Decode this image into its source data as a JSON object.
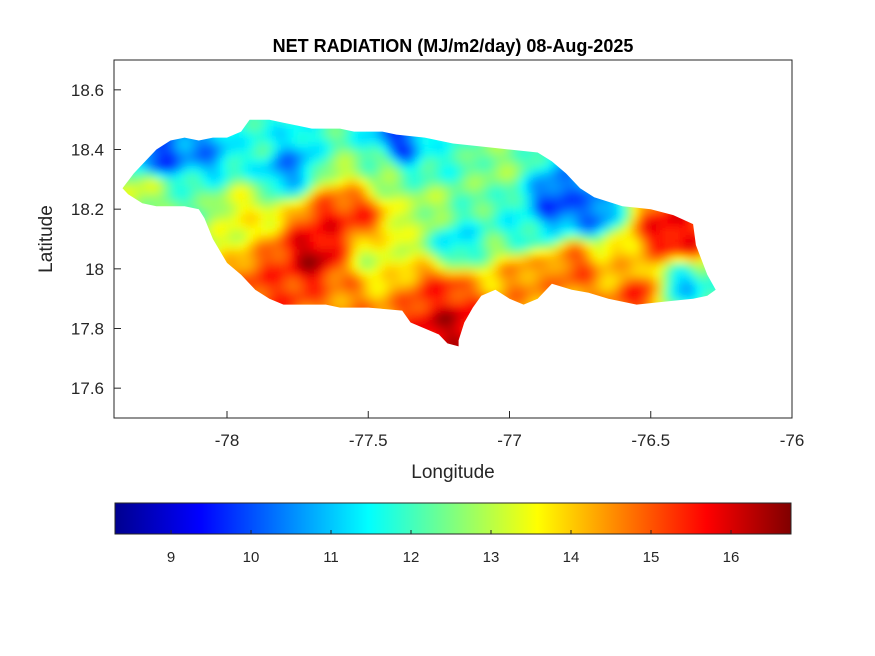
{
  "chart_data": {
    "type": "heatmap",
    "title": "NET RADIATION (MJ/m2/day) 08-Aug-2025",
    "xlabel": "Longitude",
    "ylabel": "Latitude",
    "xlim": [
      -78.4,
      -76
    ],
    "ylim": [
      17.5,
      18.7
    ],
    "x_ticks": [
      -78,
      -77.5,
      -77,
      -76.5,
      -76
    ],
    "x_tick_labels": [
      "-78",
      "-77.5",
      "-77",
      "-76.5",
      "-76"
    ],
    "y_ticks": [
      17.6,
      17.8,
      18,
      18.2,
      18.4,
      18.6
    ],
    "y_tick_labels": [
      "17.6",
      "17.8",
      "18",
      "18.2",
      "18.4",
      "18.6"
    ],
    "colormap": "jet",
    "colorbar": {
      "range": [
        8.3,
        16.75
      ],
      "ticks": [
        9,
        10,
        11,
        12,
        13,
        14,
        15,
        16
      ],
      "tick_labels": [
        "9",
        "10",
        "11",
        "12",
        "13",
        "14",
        "15",
        "16"
      ]
    },
    "region": "Jamaica",
    "outline": [
      [
        -78.37,
        18.27
      ],
      [
        -78.33,
        18.32
      ],
      [
        -78.3,
        18.35
      ],
      [
        -78.25,
        18.4
      ],
      [
        -78.2,
        18.43
      ],
      [
        -78.15,
        18.44
      ],
      [
        -78.1,
        18.43
      ],
      [
        -78.05,
        18.44
      ],
      [
        -78.0,
        18.44
      ],
      [
        -77.95,
        18.46
      ],
      [
        -77.92,
        18.5
      ],
      [
        -77.85,
        18.5
      ],
      [
        -77.8,
        18.49
      ],
      [
        -77.75,
        18.48
      ],
      [
        -77.7,
        18.47
      ],
      [
        -77.6,
        18.47
      ],
      [
        -77.55,
        18.46
      ],
      [
        -77.45,
        18.46
      ],
      [
        -77.4,
        18.45
      ],
      [
        -77.3,
        18.44
      ],
      [
        -77.2,
        18.42
      ],
      [
        -77.1,
        18.41
      ],
      [
        -77.0,
        18.4
      ],
      [
        -76.9,
        18.39
      ],
      [
        -76.85,
        18.36
      ],
      [
        -76.8,
        18.32
      ],
      [
        -76.75,
        18.27
      ],
      [
        -76.7,
        18.24
      ],
      [
        -76.6,
        18.21
      ],
      [
        -76.5,
        18.2
      ],
      [
        -76.42,
        18.18
      ],
      [
        -76.35,
        18.15
      ],
      [
        -76.34,
        18.08
      ],
      [
        -76.32,
        18.03
      ],
      [
        -76.3,
        17.98
      ],
      [
        -76.27,
        17.93
      ],
      [
        -76.3,
        17.91
      ],
      [
        -76.35,
        17.9
      ],
      [
        -76.45,
        17.89
      ],
      [
        -76.55,
        17.88
      ],
      [
        -76.65,
        17.9
      ],
      [
        -76.72,
        17.92
      ],
      [
        -76.78,
        17.93
      ],
      [
        -76.85,
        17.95
      ],
      [
        -76.9,
        17.9
      ],
      [
        -76.95,
        17.88
      ],
      [
        -77.0,
        17.9
      ],
      [
        -77.05,
        17.93
      ],
      [
        -77.1,
        17.91
      ],
      [
        -77.13,
        17.87
      ],
      [
        -77.16,
        17.82
      ],
      [
        -77.18,
        17.76
      ],
      [
        -77.18,
        17.74
      ],
      [
        -77.22,
        17.75
      ],
      [
        -77.25,
        17.78
      ],
      [
        -77.3,
        17.8
      ],
      [
        -77.35,
        17.82
      ],
      [
        -77.38,
        17.86
      ],
      [
        -77.5,
        17.87
      ],
      [
        -77.6,
        17.87
      ],
      [
        -77.65,
        17.88
      ],
      [
        -77.75,
        17.88
      ],
      [
        -77.8,
        17.88
      ],
      [
        -77.85,
        17.9
      ],
      [
        -77.9,
        17.93
      ],
      [
        -77.95,
        17.98
      ],
      [
        -78.0,
        18.02
      ],
      [
        -78.05,
        18.1
      ],
      [
        -78.08,
        18.17
      ],
      [
        -78.1,
        18.2
      ],
      [
        -78.15,
        18.21
      ],
      [
        -78.25,
        18.21
      ],
      [
        -78.3,
        18.22
      ],
      [
        -78.35,
        18.25
      ]
    ],
    "value_centers": [
      {
        "lon": -78.25,
        "lat": 18.38,
        "value": 9.8
      },
      {
        "lon": -78.1,
        "lat": 18.4,
        "value": 10.5
      },
      {
        "lon": -78.3,
        "lat": 18.28,
        "value": 13.2
      },
      {
        "lon": -78.15,
        "lat": 18.25,
        "value": 12.2
      },
      {
        "lon": -77.9,
        "lat": 18.42,
        "value": 11.8
      },
      {
        "lon": -77.8,
        "lat": 18.35,
        "value": 10.5
      },
      {
        "lon": -77.95,
        "lat": 18.2,
        "value": 13.5
      },
      {
        "lon": -77.7,
        "lat": 18.05,
        "value": 16.3
      },
      {
        "lon": -77.65,
        "lat": 18.15,
        "value": 15.6
      },
      {
        "lon": -77.55,
        "lat": 18.18,
        "value": 15.3
      },
      {
        "lon": -77.85,
        "lat": 17.95,
        "value": 15.2
      },
      {
        "lon": -77.6,
        "lat": 17.92,
        "value": 14.6
      },
      {
        "lon": -77.5,
        "lat": 18.05,
        "value": 13.2
      },
      {
        "lon": -77.45,
        "lat": 18.35,
        "value": 12.6
      },
      {
        "lon": -77.4,
        "lat": 18.42,
        "value": 9.8
      },
      {
        "lon": -77.25,
        "lat": 18.4,
        "value": 11.8
      },
      {
        "lon": -77.3,
        "lat": 18.2,
        "value": 12.9
      },
      {
        "lon": -77.2,
        "lat": 18.1,
        "value": 11.3
      },
      {
        "lon": -77.25,
        "lat": 17.93,
        "value": 15.3
      },
      {
        "lon": -77.23,
        "lat": 17.83,
        "value": 16.2
      },
      {
        "lon": -77.05,
        "lat": 18.35,
        "value": 12.6
      },
      {
        "lon": -76.95,
        "lat": 18.15,
        "value": 11.6
      },
      {
        "lon": -76.85,
        "lat": 18.22,
        "value": 9.8
      },
      {
        "lon": -76.72,
        "lat": 18.2,
        "value": 10.2
      },
      {
        "lon": -76.95,
        "lat": 17.98,
        "value": 14.6
      },
      {
        "lon": -76.78,
        "lat": 18.02,
        "value": 15.0
      },
      {
        "lon": -76.6,
        "lat": 18.02,
        "value": 14.0
      },
      {
        "lon": -76.55,
        "lat": 17.93,
        "value": 15.3
      },
      {
        "lon": -76.45,
        "lat": 18.13,
        "value": 15.9
      },
      {
        "lon": -76.38,
        "lat": 18.1,
        "value": 15.5
      },
      {
        "lon": -76.4,
        "lat": 17.96,
        "value": 11.0
      },
      {
        "lon": -76.3,
        "lat": 17.95,
        "value": 11.8
      }
    ]
  }
}
